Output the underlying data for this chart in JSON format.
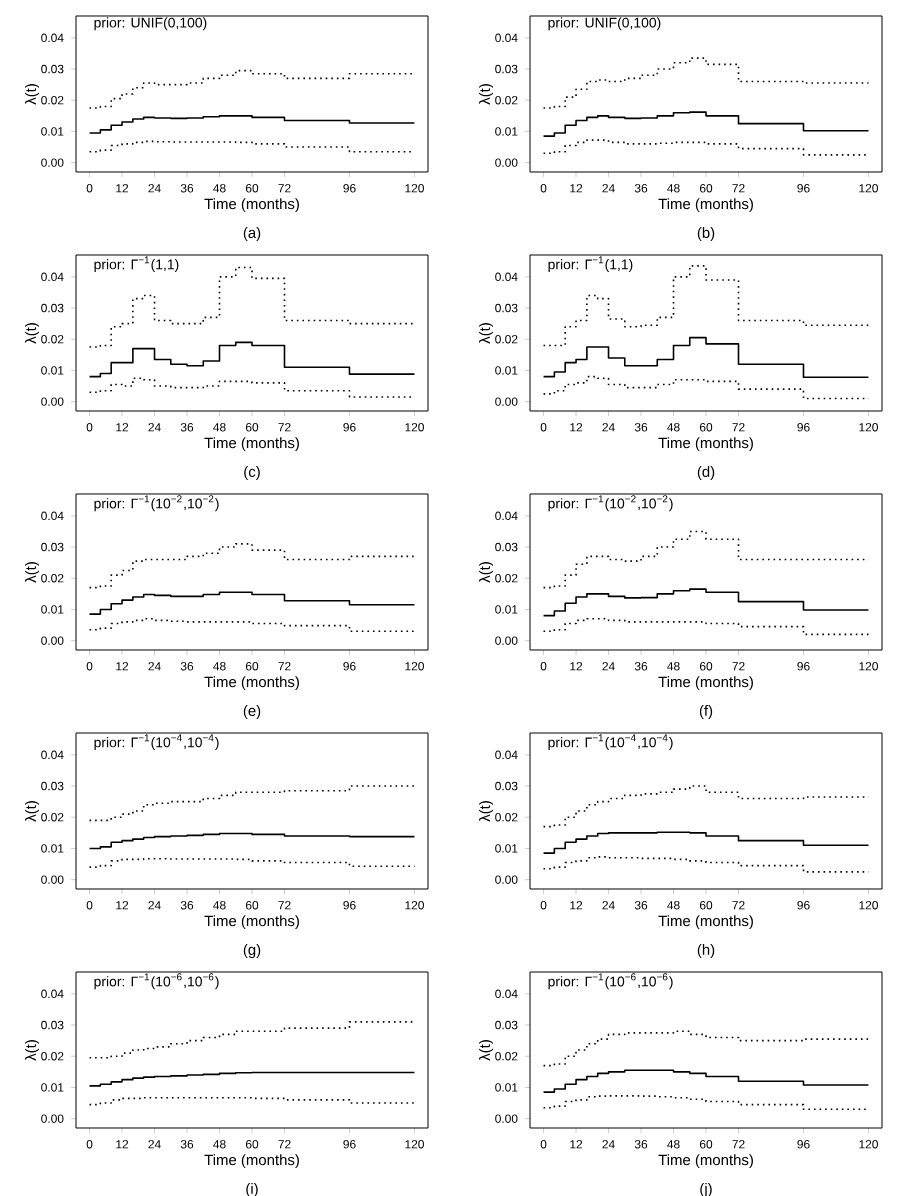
{
  "chart_data": [
    {
      "type": "step",
      "title": "prior: UNIF(0,100)",
      "xlabel": "Time (months)",
      "ylabel": "λ(t)",
      "annotations": [
        "(a)"
      ],
      "x": [
        0,
        4,
        8,
        12,
        16,
        20,
        24,
        30,
        36,
        42,
        48,
        54,
        60,
        72,
        96,
        120
      ],
      "xlim": [
        -5,
        125
      ],
      "ylim": [
        -0.003,
        0.047
      ],
      "xticks": [
        0,
        12,
        24,
        36,
        48,
        60,
        72,
        96,
        120
      ],
      "yticks": [
        {
          "value": 0,
          "label": "0.00"
        },
        {
          "value": 0.01,
          "label": "0.01"
        },
        {
          "value": 0.02,
          "label": "0.02"
        },
        {
          "value": 0.03,
          "label": "0.03"
        },
        {
          "value": 0.04,
          "label": "0.04"
        }
      ],
      "series": [
        {
          "color": "#000000",
          "line_style": "solid",
          "values": [
            0.0095,
            0.0105,
            0.012,
            0.013,
            0.014,
            0.0145,
            0.0143,
            0.0142,
            0.0143,
            0.0147,
            0.015,
            0.015,
            0.0145,
            0.0135,
            0.0127,
            0.0127
          ]
        },
        {
          "color": "#000000",
          "line_style": "dotted",
          "values": [
            0.0175,
            0.018,
            0.0205,
            0.022,
            0.024,
            0.0255,
            0.025,
            0.025,
            0.0255,
            0.027,
            0.028,
            0.0295,
            0.0285,
            0.027,
            0.0285,
            0.0285
          ]
        },
        {
          "color": "#000000",
          "line_style": "dotted",
          "values": [
            0.0035,
            0.004,
            0.0055,
            0.006,
            0.0065,
            0.0068,
            0.0067,
            0.0066,
            0.0066,
            0.0066,
            0.0066,
            0.0065,
            0.006,
            0.005,
            0.0035,
            0.0035
          ]
        }
      ]
    },
    {
      "type": "step",
      "title": "prior: UNIF(0,100)",
      "xlabel": "Time (months)",
      "ylabel": "λ(t)",
      "annotations": [
        "(b)"
      ],
      "x": [
        0,
        4,
        8,
        12,
        16,
        20,
        24,
        30,
        36,
        42,
        48,
        54,
        60,
        72,
        96,
        120
      ],
      "xlim": [
        -5,
        125
      ],
      "ylim": [
        -0.003,
        0.047
      ],
      "xticks": [
        0,
        12,
        24,
        36,
        48,
        60,
        72,
        96,
        120
      ],
      "yticks": [
        {
          "value": 0,
          "label": "0.00"
        },
        {
          "value": 0.01,
          "label": "0.01"
        },
        {
          "value": 0.02,
          "label": "0.02"
        },
        {
          "value": 0.03,
          "label": "0.03"
        },
        {
          "value": 0.04,
          "label": "0.04"
        }
      ],
      "series": [
        {
          "color": "#000000",
          "line_style": "solid",
          "values": [
            0.0085,
            0.0095,
            0.012,
            0.0135,
            0.0145,
            0.015,
            0.0145,
            0.0142,
            0.0143,
            0.015,
            0.016,
            0.0162,
            0.015,
            0.0125,
            0.0102,
            0.0102
          ]
        },
        {
          "color": "#000000",
          "line_style": "dotted",
          "values": [
            0.0175,
            0.018,
            0.021,
            0.0235,
            0.026,
            0.0265,
            0.026,
            0.027,
            0.028,
            0.03,
            0.032,
            0.0335,
            0.0315,
            0.026,
            0.0255,
            0.0255
          ]
        },
        {
          "color": "#000000",
          "line_style": "dotted",
          "values": [
            0.003,
            0.0035,
            0.0055,
            0.0065,
            0.0072,
            0.0072,
            0.0065,
            0.006,
            0.006,
            0.0062,
            0.0065,
            0.0065,
            0.006,
            0.0045,
            0.0025,
            0.0025
          ]
        }
      ]
    },
    {
      "type": "step",
      "title": "prior: Γ$^{−1}$(1,1)",
      "xlabel": "Time (months)",
      "ylabel": "λ(t)",
      "annotations": [
        "(c)"
      ],
      "x": [
        0,
        4,
        8,
        12,
        16,
        20,
        24,
        30,
        36,
        42,
        48,
        54,
        60,
        72,
        96,
        120
      ],
      "xlim": [
        -5,
        125
      ],
      "ylim": [
        -0.003,
        0.047
      ],
      "xticks": [
        0,
        12,
        24,
        36,
        48,
        60,
        72,
        96,
        120
      ],
      "yticks": [
        {
          "value": 0,
          "label": "0.00"
        },
        {
          "value": 0.01,
          "label": "0.01"
        },
        {
          "value": 0.02,
          "label": "0.02"
        },
        {
          "value": 0.03,
          "label": "0.03"
        },
        {
          "value": 0.04,
          "label": "0.04"
        }
      ],
      "series": [
        {
          "color": "#000000",
          "line_style": "solid",
          "values": [
            0.008,
            0.009,
            0.0125,
            0.0125,
            0.017,
            0.017,
            0.0135,
            0.012,
            0.0115,
            0.013,
            0.018,
            0.019,
            0.018,
            0.011,
            0.0088,
            0.0088
          ]
        },
        {
          "color": "#000000",
          "line_style": "dotted",
          "values": [
            0.0175,
            0.018,
            0.024,
            0.025,
            0.033,
            0.034,
            0.026,
            0.025,
            0.025,
            0.027,
            0.04,
            0.043,
            0.0395,
            0.026,
            0.025,
            0.025
          ]
        },
        {
          "color": "#000000",
          "line_style": "dotted",
          "values": [
            0.003,
            0.0035,
            0.0055,
            0.005,
            0.0075,
            0.007,
            0.005,
            0.0045,
            0.0045,
            0.005,
            0.0065,
            0.0065,
            0.006,
            0.0035,
            0.0015,
            0.0015
          ]
        }
      ]
    },
    {
      "type": "step",
      "title": "prior: Γ$^{−1}$(1,1)",
      "xlabel": "Time (months)",
      "ylabel": "λ(t)",
      "annotations": [
        "(d)"
      ],
      "x": [
        0,
        4,
        8,
        12,
        16,
        20,
        24,
        30,
        36,
        42,
        48,
        54,
        60,
        72,
        96,
        120
      ],
      "xlim": [
        -5,
        125
      ],
      "ylim": [
        -0.003,
        0.047
      ],
      "xticks": [
        0,
        12,
        24,
        36,
        48,
        60,
        72,
        96,
        120
      ],
      "yticks": [
        {
          "value": 0,
          "label": "0.00"
        },
        {
          "value": 0.01,
          "label": "0.01"
        },
        {
          "value": 0.02,
          "label": "0.02"
        },
        {
          "value": 0.03,
          "label": "0.03"
        },
        {
          "value": 0.04,
          "label": "0.04"
        }
      ],
      "series": [
        {
          "color": "#000000",
          "line_style": "solid",
          "values": [
            0.008,
            0.0095,
            0.0125,
            0.0135,
            0.0175,
            0.0175,
            0.014,
            0.0115,
            0.0115,
            0.0135,
            0.018,
            0.0205,
            0.0185,
            0.012,
            0.0078,
            0.0078
          ]
        },
        {
          "color": "#000000",
          "line_style": "dotted",
          "values": [
            0.018,
            0.018,
            0.024,
            0.026,
            0.034,
            0.033,
            0.0265,
            0.024,
            0.0245,
            0.027,
            0.04,
            0.0435,
            0.039,
            0.026,
            0.0245,
            0.0245
          ]
        },
        {
          "color": "#000000",
          "line_style": "dotted",
          "values": [
            0.0025,
            0.0035,
            0.0055,
            0.006,
            0.008,
            0.0075,
            0.0055,
            0.0045,
            0.0045,
            0.0055,
            0.007,
            0.007,
            0.0065,
            0.004,
            0.001,
            0.001
          ]
        }
      ]
    },
    {
      "type": "step",
      "title": "prior: Γ$^{−1}$(10$^{−2}$,10$^{−2}$)",
      "xlabel": "Time (months)",
      "ylabel": "λ(t)",
      "annotations": [
        "(e)"
      ],
      "x": [
        0,
        4,
        8,
        12,
        16,
        20,
        24,
        30,
        36,
        42,
        48,
        54,
        60,
        72,
        96,
        120
      ],
      "xlim": [
        -5,
        125
      ],
      "ylim": [
        -0.003,
        0.047
      ],
      "xticks": [
        0,
        12,
        24,
        36,
        48,
        60,
        72,
        96,
        120
      ],
      "yticks": [
        {
          "value": 0,
          "label": "0.00"
        },
        {
          "value": 0.01,
          "label": "0.01"
        },
        {
          "value": 0.02,
          "label": "0.02"
        },
        {
          "value": 0.03,
          "label": "0.03"
        },
        {
          "value": 0.04,
          "label": "0.04"
        }
      ],
      "series": [
        {
          "color": "#000000",
          "line_style": "solid",
          "values": [
            0.0085,
            0.01,
            0.0118,
            0.013,
            0.014,
            0.0148,
            0.0145,
            0.0142,
            0.0142,
            0.0148,
            0.0155,
            0.0155,
            0.0148,
            0.0128,
            0.0115,
            0.0115
          ]
        },
        {
          "color": "#000000",
          "line_style": "dotted",
          "values": [
            0.017,
            0.0175,
            0.021,
            0.0225,
            0.0255,
            0.026,
            0.026,
            0.026,
            0.027,
            0.028,
            0.03,
            0.031,
            0.029,
            0.026,
            0.027,
            0.027
          ]
        },
        {
          "color": "#000000",
          "line_style": "dotted",
          "values": [
            0.0035,
            0.004,
            0.0055,
            0.006,
            0.0065,
            0.007,
            0.0065,
            0.0062,
            0.006,
            0.006,
            0.006,
            0.006,
            0.0055,
            0.0048,
            0.003,
            0.003
          ]
        }
      ]
    },
    {
      "type": "step",
      "title": "prior: Γ$^{−1}$(10$^{−2}$,10$^{−2}$)",
      "xlabel": "Time (months)",
      "ylabel": "λ(t)",
      "annotations": [
        "(f)"
      ],
      "x": [
        0,
        4,
        8,
        12,
        16,
        20,
        24,
        30,
        36,
        42,
        48,
        54,
        60,
        72,
        96,
        120
      ],
      "xlim": [
        -5,
        125
      ],
      "ylim": [
        -0.003,
        0.047
      ],
      "xticks": [
        0,
        12,
        24,
        36,
        48,
        60,
        72,
        96,
        120
      ],
      "yticks": [
        {
          "value": 0,
          "label": "0.00"
        },
        {
          "value": 0.01,
          "label": "0.01"
        },
        {
          "value": 0.02,
          "label": "0.02"
        },
        {
          "value": 0.03,
          "label": "0.03"
        },
        {
          "value": 0.04,
          "label": "0.04"
        }
      ],
      "series": [
        {
          "color": "#000000",
          "line_style": "solid",
          "values": [
            0.008,
            0.0095,
            0.012,
            0.014,
            0.015,
            0.015,
            0.0142,
            0.0137,
            0.0138,
            0.015,
            0.016,
            0.0165,
            0.0155,
            0.0125,
            0.0098,
            0.0098
          ]
        },
        {
          "color": "#000000",
          "line_style": "dotted",
          "values": [
            0.017,
            0.0175,
            0.021,
            0.0245,
            0.027,
            0.027,
            0.026,
            0.0255,
            0.027,
            0.03,
            0.0325,
            0.035,
            0.0325,
            0.026,
            0.026,
            0.026
          ]
        },
        {
          "color": "#000000",
          "line_style": "dotted",
          "values": [
            0.003,
            0.0035,
            0.0055,
            0.0065,
            0.007,
            0.007,
            0.0065,
            0.006,
            0.006,
            0.006,
            0.006,
            0.006,
            0.0055,
            0.0045,
            0.002,
            0.002
          ]
        }
      ]
    },
    {
      "type": "step",
      "title": "prior: Γ$^{−1}$(10$^{−4}$,10$^{−4}$)",
      "xlabel": "Time (months)",
      "ylabel": "λ(t)",
      "annotations": [
        "(g)"
      ],
      "x": [
        0,
        4,
        8,
        12,
        16,
        20,
        24,
        30,
        36,
        42,
        48,
        54,
        60,
        72,
        96,
        120
      ],
      "xlim": [
        -5,
        125
      ],
      "ylim": [
        -0.003,
        0.047
      ],
      "xticks": [
        0,
        12,
        24,
        36,
        48,
        60,
        72,
        96,
        120
      ],
      "yticks": [
        {
          "value": 0,
          "label": "0.00"
        },
        {
          "value": 0.01,
          "label": "0.01"
        },
        {
          "value": 0.02,
          "label": "0.02"
        },
        {
          "value": 0.03,
          "label": "0.03"
        },
        {
          "value": 0.04,
          "label": "0.04"
        }
      ],
      "series": [
        {
          "color": "#000000",
          "line_style": "solid",
          "values": [
            0.01,
            0.0105,
            0.012,
            0.0125,
            0.013,
            0.0135,
            0.0138,
            0.014,
            0.0142,
            0.0145,
            0.0148,
            0.0148,
            0.0145,
            0.014,
            0.0138,
            0.0138
          ]
        },
        {
          "color": "#000000",
          "line_style": "dotted",
          "values": [
            0.019,
            0.019,
            0.02,
            0.021,
            0.022,
            0.024,
            0.0245,
            0.025,
            0.025,
            0.026,
            0.027,
            0.028,
            0.028,
            0.0285,
            0.03,
            0.03
          ]
        },
        {
          "color": "#000000",
          "line_style": "dotted",
          "values": [
            0.004,
            0.0045,
            0.006,
            0.0065,
            0.0065,
            0.0067,
            0.0067,
            0.0066,
            0.0066,
            0.0066,
            0.0066,
            0.0065,
            0.006,
            0.0055,
            0.0043,
            0.0043
          ]
        }
      ]
    },
    {
      "type": "step",
      "title": "prior: Γ$^{−1}$(10$^{−4}$,10$^{−4}$)",
      "xlabel": "Time (months)",
      "ylabel": "λ(t)",
      "annotations": [
        "(h)"
      ],
      "x": [
        0,
        4,
        8,
        12,
        16,
        20,
        24,
        30,
        36,
        42,
        48,
        54,
        60,
        72,
        96,
        120
      ],
      "xlim": [
        -5,
        125
      ],
      "ylim": [
        -0.003,
        0.047
      ],
      "xticks": [
        0,
        12,
        24,
        36,
        48,
        60,
        72,
        96,
        120
      ],
      "yticks": [
        {
          "value": 0,
          "label": "0.00"
        },
        {
          "value": 0.01,
          "label": "0.01"
        },
        {
          "value": 0.02,
          "label": "0.02"
        },
        {
          "value": 0.03,
          "label": "0.03"
        },
        {
          "value": 0.04,
          "label": "0.04"
        }
      ],
      "series": [
        {
          "color": "#000000",
          "line_style": "solid",
          "values": [
            0.0085,
            0.01,
            0.012,
            0.013,
            0.014,
            0.0148,
            0.015,
            0.015,
            0.015,
            0.0152,
            0.0152,
            0.015,
            0.014,
            0.0125,
            0.011,
            0.011
          ]
        },
        {
          "color": "#000000",
          "line_style": "dotted",
          "values": [
            0.017,
            0.0175,
            0.02,
            0.022,
            0.024,
            0.025,
            0.026,
            0.027,
            0.0275,
            0.028,
            0.029,
            0.03,
            0.028,
            0.026,
            0.0265,
            0.0265
          ]
        },
        {
          "color": "#000000",
          "line_style": "dotted",
          "values": [
            0.0035,
            0.004,
            0.0055,
            0.006,
            0.007,
            0.0073,
            0.007,
            0.007,
            0.0068,
            0.0068,
            0.0065,
            0.006,
            0.0055,
            0.0045,
            0.0025,
            0.0025
          ]
        }
      ]
    },
    {
      "type": "step",
      "title": "prior: Γ$^{−1}$(10$^{−6}$,10$^{−6}$)",
      "xlabel": "Time (months)",
      "ylabel": "λ(t)",
      "annotations": [
        "(i)"
      ],
      "x": [
        0,
        4,
        8,
        12,
        16,
        20,
        24,
        30,
        36,
        42,
        48,
        54,
        60,
        72,
        96,
        120
      ],
      "xlim": [
        -5,
        125
      ],
      "ylim": [
        -0.003,
        0.047
      ],
      "xticks": [
        0,
        12,
        24,
        36,
        48,
        60,
        72,
        96,
        120
      ],
      "yticks": [
        {
          "value": 0,
          "label": "0.00"
        },
        {
          "value": 0.01,
          "label": "0.01"
        },
        {
          "value": 0.02,
          "label": "0.02"
        },
        {
          "value": 0.03,
          "label": "0.03"
        },
        {
          "value": 0.04,
          "label": "0.04"
        }
      ],
      "series": [
        {
          "color": "#000000",
          "line_style": "solid",
          "values": [
            0.0105,
            0.011,
            0.0118,
            0.0125,
            0.013,
            0.0133,
            0.0135,
            0.0137,
            0.014,
            0.0142,
            0.0145,
            0.0147,
            0.0148,
            0.0148,
            0.0148,
            0.0148
          ]
        },
        {
          "color": "#000000",
          "line_style": "dotted",
          "values": [
            0.0195,
            0.0195,
            0.02,
            0.021,
            0.022,
            0.0225,
            0.023,
            0.024,
            0.025,
            0.026,
            0.027,
            0.028,
            0.028,
            0.029,
            0.031,
            0.031
          ]
        },
        {
          "color": "#000000",
          "line_style": "dotted",
          "values": [
            0.0045,
            0.005,
            0.006,
            0.0065,
            0.0065,
            0.0067,
            0.0067,
            0.0067,
            0.0067,
            0.0067,
            0.0067,
            0.0067,
            0.0065,
            0.006,
            0.005,
            0.005
          ]
        }
      ]
    },
    {
      "type": "step",
      "title": "prior: Γ$^{−1}$(10$^{−6}$,10$^{−6}$)",
      "xlabel": "Time (months)",
      "ylabel": "λ(t)",
      "annotations": [
        "(j)"
      ],
      "x": [
        0,
        4,
        8,
        12,
        16,
        20,
        24,
        30,
        36,
        42,
        48,
        54,
        60,
        72,
        96,
        120
      ],
      "xlim": [
        -5,
        125
      ],
      "ylim": [
        -0.003,
        0.047
      ],
      "xticks": [
        0,
        12,
        24,
        36,
        48,
        60,
        72,
        96,
        120
      ],
      "yticks": [
        {
          "value": 0,
          "label": "0.00"
        },
        {
          "value": 0.01,
          "label": "0.01"
        },
        {
          "value": 0.02,
          "label": "0.02"
        },
        {
          "value": 0.03,
          "label": "0.03"
        },
        {
          "value": 0.04,
          "label": "0.04"
        }
      ],
      "series": [
        {
          "color": "#000000",
          "line_style": "solid",
          "values": [
            0.0085,
            0.0095,
            0.011,
            0.0125,
            0.0135,
            0.0145,
            0.015,
            0.0155,
            0.0155,
            0.0155,
            0.015,
            0.0145,
            0.0135,
            0.012,
            0.0108,
            0.0108
          ]
        },
        {
          "color": "#000000",
          "line_style": "dotted",
          "values": [
            0.017,
            0.0175,
            0.02,
            0.022,
            0.024,
            0.0255,
            0.027,
            0.0275,
            0.0275,
            0.0275,
            0.028,
            0.027,
            0.026,
            0.025,
            0.0255,
            0.0255
          ]
        },
        {
          "color": "#000000",
          "line_style": "dotted",
          "values": [
            0.0035,
            0.004,
            0.0055,
            0.006,
            0.007,
            0.0072,
            0.0073,
            0.0073,
            0.0072,
            0.007,
            0.0067,
            0.0062,
            0.0055,
            0.0045,
            0.003,
            0.003
          ]
        }
      ]
    }
  ]
}
